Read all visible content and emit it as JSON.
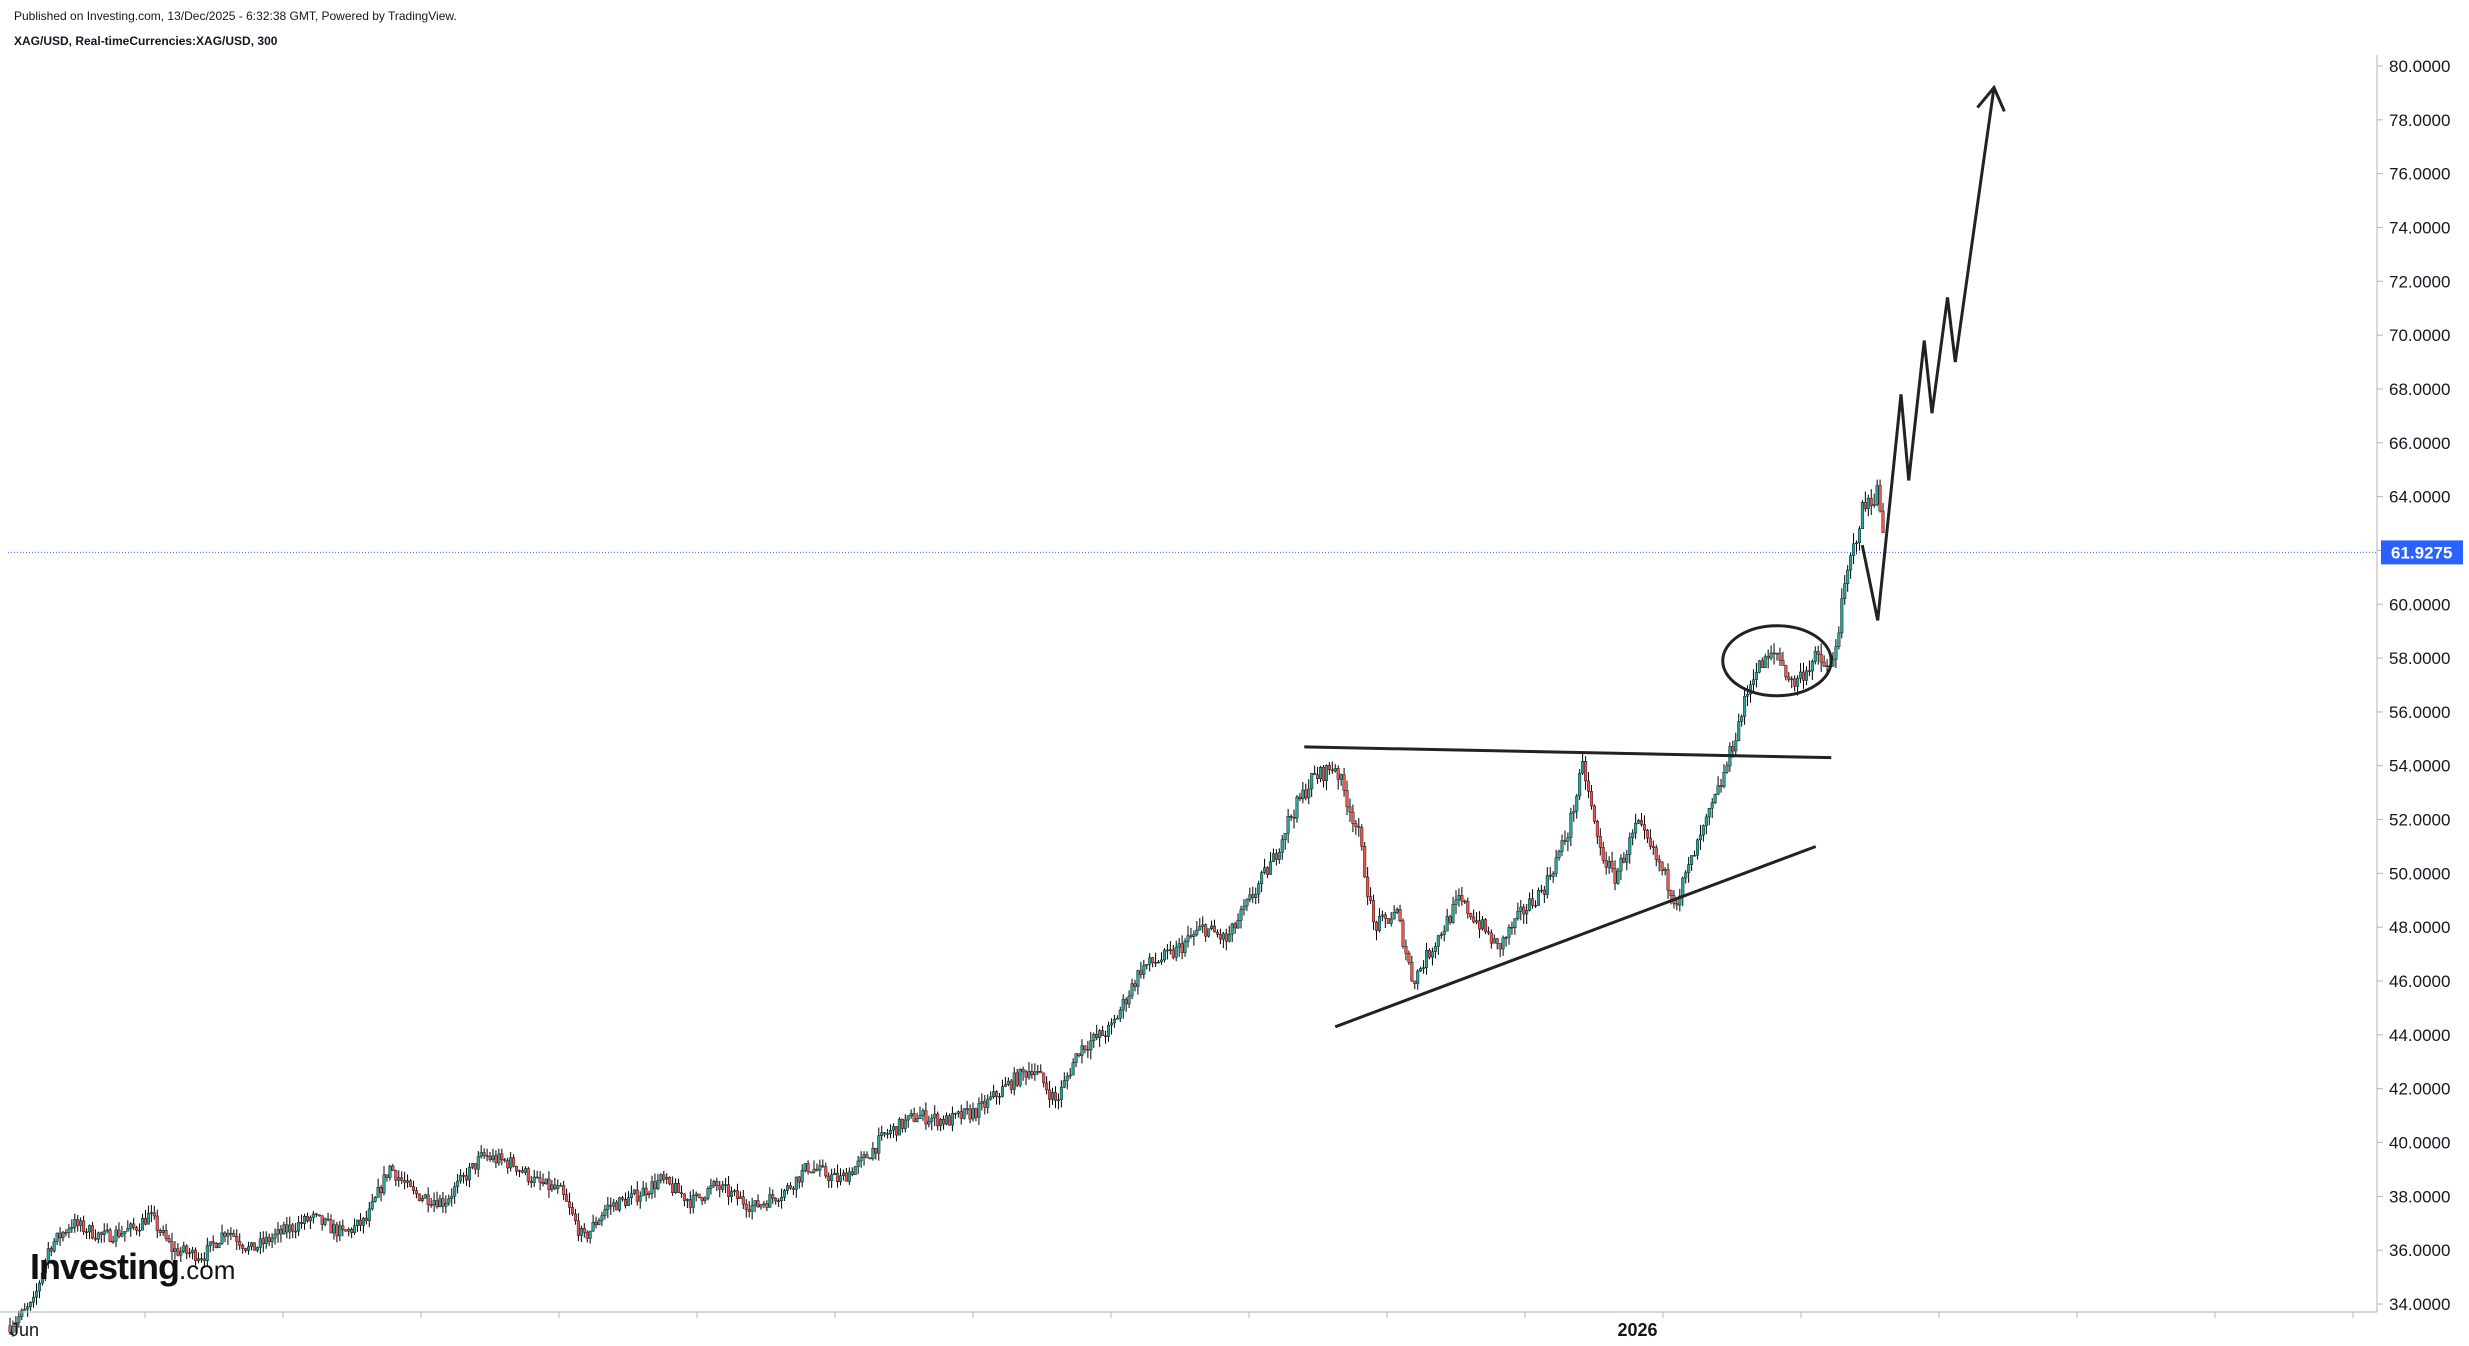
{
  "header": {
    "publish_line": "Published on Investing.com, 13/Dec/2025 - 6:32:38 GMT, Powered by TradingView.",
    "symbol_line": "XAG/USD, Real-timeCurrencies:XAG/USD, 300"
  },
  "logo": {
    "main": "Investing",
    "suffix": ".com"
  },
  "colors": {
    "up": "#26a69a",
    "down": "#ef5350",
    "wick": "#000000",
    "price_line": "#2962ff",
    "price_label_bg": "#2962ff",
    "annotation": "#222222",
    "axis": "#b2b5be",
    "text": "#131722"
  },
  "chart_data": {
    "type": "candlestick",
    "instrument": "XAG/USD",
    "timeframe": "300",
    "x_ticks": [
      {
        "label": "Jun",
        "index": 0
      },
      {
        "label": "2026",
        "index": 210
      }
    ],
    "y_ticks": [
      "80.0000",
      "78.0000",
      "76.0000",
      "74.0000",
      "72.0000",
      "70.0000",
      "68.0000",
      "66.0000",
      "64.0000",
      "62.0000",
      "60.0000",
      "58.0000",
      "56.0000",
      "54.0000",
      "52.0000",
      "50.0000",
      "48.0000",
      "46.0000",
      "44.0000",
      "42.0000",
      "40.0000",
      "38.0000",
      "36.0000",
      "34.0000"
    ],
    "ylim": [
      33.0,
      80.5
    ],
    "last_price": 61.9275,
    "last_price_label": "61.9275",
    "price_path": [
      [
        0,
        33.2
      ],
      [
        3,
        34.0
      ],
      [
        5,
        36.1
      ],
      [
        8,
        37.0
      ],
      [
        12,
        36.5
      ],
      [
        16,
        36.8
      ],
      [
        18,
        37.3
      ],
      [
        21,
        36.0
      ],
      [
        25,
        35.8
      ],
      [
        28,
        36.8
      ],
      [
        31,
        36.0
      ],
      [
        36,
        36.8
      ],
      [
        39,
        37.2
      ],
      [
        43,
        36.6
      ],
      [
        46,
        37.1
      ],
      [
        49,
        39.1
      ],
      [
        52,
        38.1
      ],
      [
        56,
        37.8
      ],
      [
        61,
        39.5
      ],
      [
        65,
        39.2
      ],
      [
        68,
        38.5
      ],
      [
        71,
        38.2
      ],
      [
        74,
        36.4
      ],
      [
        77,
        37.6
      ],
      [
        80,
        37.9
      ],
      [
        84,
        38.6
      ],
      [
        88,
        37.8
      ],
      [
        91,
        38.4
      ],
      [
        96,
        37.6
      ],
      [
        100,
        38.2
      ],
      [
        103,
        39.1
      ],
      [
        107,
        38.6
      ],
      [
        110,
        39.3
      ],
      [
        113,
        40.3
      ],
      [
        117,
        41.0
      ],
      [
        121,
        40.8
      ],
      [
        125,
        41.2
      ],
      [
        129,
        42.2
      ],
      [
        132,
        42.8
      ],
      [
        135,
        41.5
      ],
      [
        138,
        43.5
      ],
      [
        142,
        44.2
      ],
      [
        146,
        46.5
      ],
      [
        150,
        47.0
      ],
      [
        154,
        48.0
      ],
      [
        157,
        47.5
      ],
      [
        160,
        49.0
      ],
      [
        163,
        50.5
      ],
      [
        165,
        52.0
      ],
      [
        168,
        53.5
      ],
      [
        171,
        54.0
      ],
      [
        174,
        51.5
      ],
      [
        176,
        48.0
      ],
      [
        179,
        48.5
      ],
      [
        181,
        46.0
      ],
      [
        184,
        47.5
      ],
      [
        187,
        49.0
      ],
      [
        190,
        48.0
      ],
      [
        192,
        47.2
      ],
      [
        195,
        48.5
      ],
      [
        198,
        49.5
      ],
      [
        201,
        51.5
      ],
      [
        203,
        54.0
      ],
      [
        205,
        51.0
      ],
      [
        207,
        49.8
      ],
      [
        210,
        51.8
      ],
      [
        213,
        50.2
      ],
      [
        215,
        49.0
      ],
      [
        218,
        51.2
      ],
      [
        221,
        53.5
      ],
      [
        223,
        55.5
      ],
      [
        225,
        57.5
      ],
      [
        228,
        58.2
      ],
      [
        230,
        57.0
      ],
      [
        233,
        58.0
      ],
      [
        235,
        57.5
      ],
      [
        237,
        61.0
      ],
      [
        239,
        63.5
      ],
      [
        241,
        64.2
      ],
      [
        242,
        61.9275
      ]
    ],
    "annotations": {
      "resistance_line": [
        [
          167,
          54.7
        ],
        [
          235,
          54.3
        ]
      ],
      "support_line": [
        [
          171,
          44.3
        ],
        [
          233,
          51.0
        ]
      ],
      "ellipse": {
        "center": [
          228,
          57.9
        ],
        "radius_index": 7,
        "radius_price": 1.3
      },
      "projection_path": [
        [
          239,
          62.2
        ],
        [
          241,
          59.4
        ],
        [
          244,
          67.8
        ],
        [
          245,
          64.6
        ],
        [
          247,
          69.8
        ],
        [
          248,
          67.1
        ],
        [
          250,
          71.4
        ],
        [
          251,
          69.0
        ],
        [
          256,
          79.2
        ]
      ]
    }
  }
}
